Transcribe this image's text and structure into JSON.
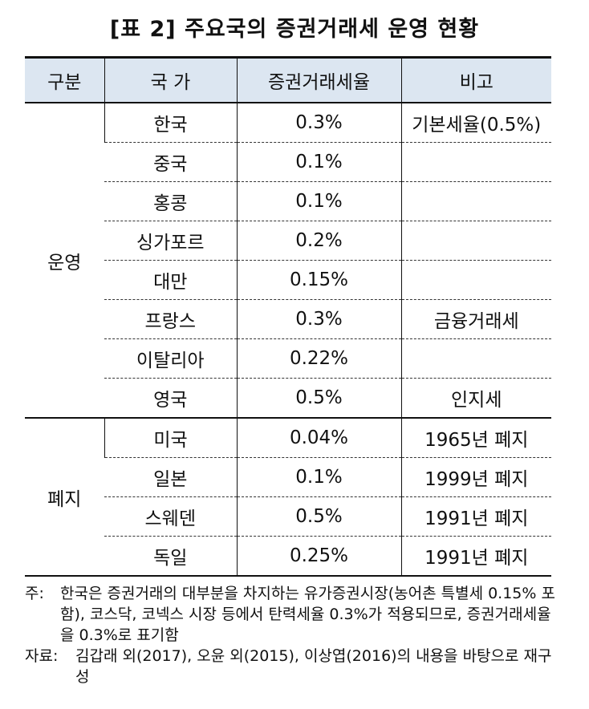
{
  "title": "[표 2] 주요국의 증권거래세 운영 현황",
  "headers": [
    "구분",
    "국 가",
    "증권거래세율",
    "비고"
  ],
  "groups": [
    {
      "label": "운영",
      "rows": [
        {
          "country": "한국",
          "rate": "0.3%",
          "note": "기본세율(0.5%)"
        },
        {
          "country": "중국",
          "rate": "0.1%",
          "note": ""
        },
        {
          "country": "홍콩",
          "rate": "0.1%",
          "note": ""
        },
        {
          "country": "싱가포르",
          "rate": "0.2%",
          "note": ""
        },
        {
          "country": "대만",
          "rate": "0.15%",
          "note": ""
        },
        {
          "country": "프랑스",
          "rate": "0.3%",
          "note": "금융거래세"
        },
        {
          "country": "이탈리아",
          "rate": "0.22%",
          "note": ""
        },
        {
          "country": "영국",
          "rate": "0.5%",
          "note": "인지세"
        }
      ]
    },
    {
      "label": "폐지",
      "rows": [
        {
          "country": "미국",
          "rate": "0.04%",
          "note": "1965년 폐지"
        },
        {
          "country": "일본",
          "rate": "0.1%",
          "note": "1999년 폐지"
        },
        {
          "country": "스웨덴",
          "rate": "0.5%",
          "note": "1991년 폐지"
        },
        {
          "country": "독일",
          "rate": "0.25%",
          "note": "1991년 폐지"
        }
      ]
    }
  ],
  "notes": [
    {
      "label": "주:",
      "text": "한국은 증권거래의 대부분을 차지하는 유가증권시장(농어촌 특별세 0.15% 포함), 코스닥, 코넥스 시장 등에서 탄력세율 0.3%가 적용되므로, 증권거래세율을 0.3%로 표기함"
    },
    {
      "label": "자료:",
      "text": "김갑래 외(2017), 오윤 외(2015), 이상엽(2016)의 내용을 바탕으로 재구성"
    }
  ]
}
